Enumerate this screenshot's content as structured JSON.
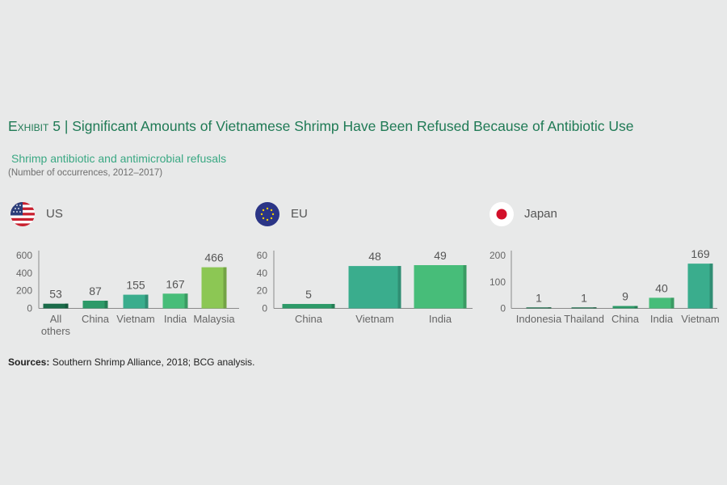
{
  "header": {
    "exhibit_label": "Exhibit 5",
    "title": "Significant Amounts of Vietnamese Shrimp Have Been Refused Because of Antibiotic Use",
    "subtitle": "Shrimp antibiotic and antimicrobial refusals",
    "unit_note": "(Number of occurrences, 2012–2017)"
  },
  "sources": {
    "label": "Sources:",
    "text": "Southern Shrimp Alliance, 2018; BCG analysis."
  },
  "icons": {
    "us": "us-flag-icon",
    "eu": "eu-flag-icon",
    "japan": "japan-flag-icon"
  },
  "colors": {
    "dark_green": "#1a6b49",
    "green": "#2d9a68",
    "teal": "#3aad8d",
    "light_green": "#47bd79",
    "lime": "#8cc754",
    "axis": "#8a8a8a"
  },
  "chart_data": [
    {
      "type": "bar",
      "region": "US",
      "categories": [
        "All others",
        "China",
        "Vietnam",
        "India",
        "Malaysia"
      ],
      "values": [
        53,
        87,
        155,
        167,
        466
      ],
      "value_labels": [
        "53",
        "87",
        "155",
        "167",
        "466"
      ],
      "bar_colors": [
        "#1a6b49",
        "#2d9a68",
        "#3aad8d",
        "#47bd79",
        "#8cc754"
      ],
      "yticks": [
        "0",
        "200",
        "400",
        "600"
      ],
      "ylim": [
        0,
        600
      ]
    },
    {
      "type": "bar",
      "region": "EU",
      "categories": [
        "China",
        "Vietnam",
        "India"
      ],
      "values": [
        5,
        48,
        49
      ],
      "value_labels": [
        "5",
        "48",
        "49"
      ],
      "bar_colors": [
        "#2d9a68",
        "#3aad8d",
        "#47bd79"
      ],
      "yticks": [
        "0",
        "20",
        "40",
        "60"
      ],
      "ylim": [
        0,
        60
      ]
    },
    {
      "type": "bar",
      "region": "Japan",
      "categories": [
        "Indonesia",
        "Thailand",
        "China",
        "India",
        "Vietnam"
      ],
      "values": [
        1,
        1,
        9,
        40,
        169
      ],
      "value_labels": [
        "1",
        "1",
        "9",
        "40",
        "169"
      ],
      "bar_colors": [
        "#1a6b49",
        "#1a6b49",
        "#2d9a68",
        "#47bd79",
        "#3aad8d"
      ],
      "yticks": [
        "0",
        "100",
        "200"
      ],
      "ylim": [
        0,
        200
      ]
    }
  ]
}
